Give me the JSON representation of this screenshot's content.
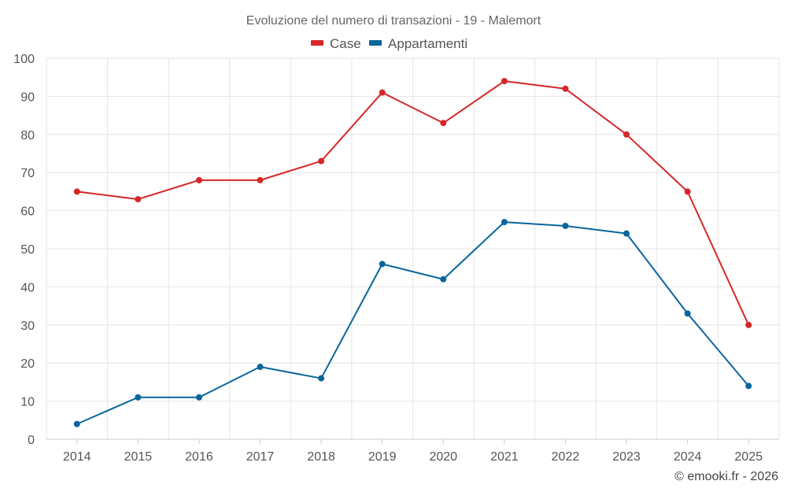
{
  "chart_data": {
    "type": "line",
    "title": "Evoluzione del numero di transazioni - 19 - Malemort",
    "categories": [
      "2014",
      "2015",
      "2016",
      "2017",
      "2018",
      "2019",
      "2020",
      "2021",
      "2022",
      "2023",
      "2024",
      "2025"
    ],
    "series": [
      {
        "name": "Case",
        "color": "#d62728",
        "values": [
          65,
          63,
          68,
          68,
          73,
          91,
          83,
          94,
          92,
          80,
          65,
          30
        ]
      },
      {
        "name": "Appartamenti",
        "color": "#08669c",
        "values": [
          4,
          11,
          11,
          19,
          16,
          46,
          42,
          57,
          56,
          54,
          33,
          14
        ]
      }
    ],
    "ylim": [
      0,
      100
    ],
    "yticks": [
      0,
      10,
      20,
      30,
      40,
      50,
      60,
      70,
      80,
      90,
      100
    ],
    "grid": true,
    "legend_position": "top-center",
    "xlabel": "",
    "ylabel": ""
  },
  "credit": "© emooki.fr - 2026"
}
